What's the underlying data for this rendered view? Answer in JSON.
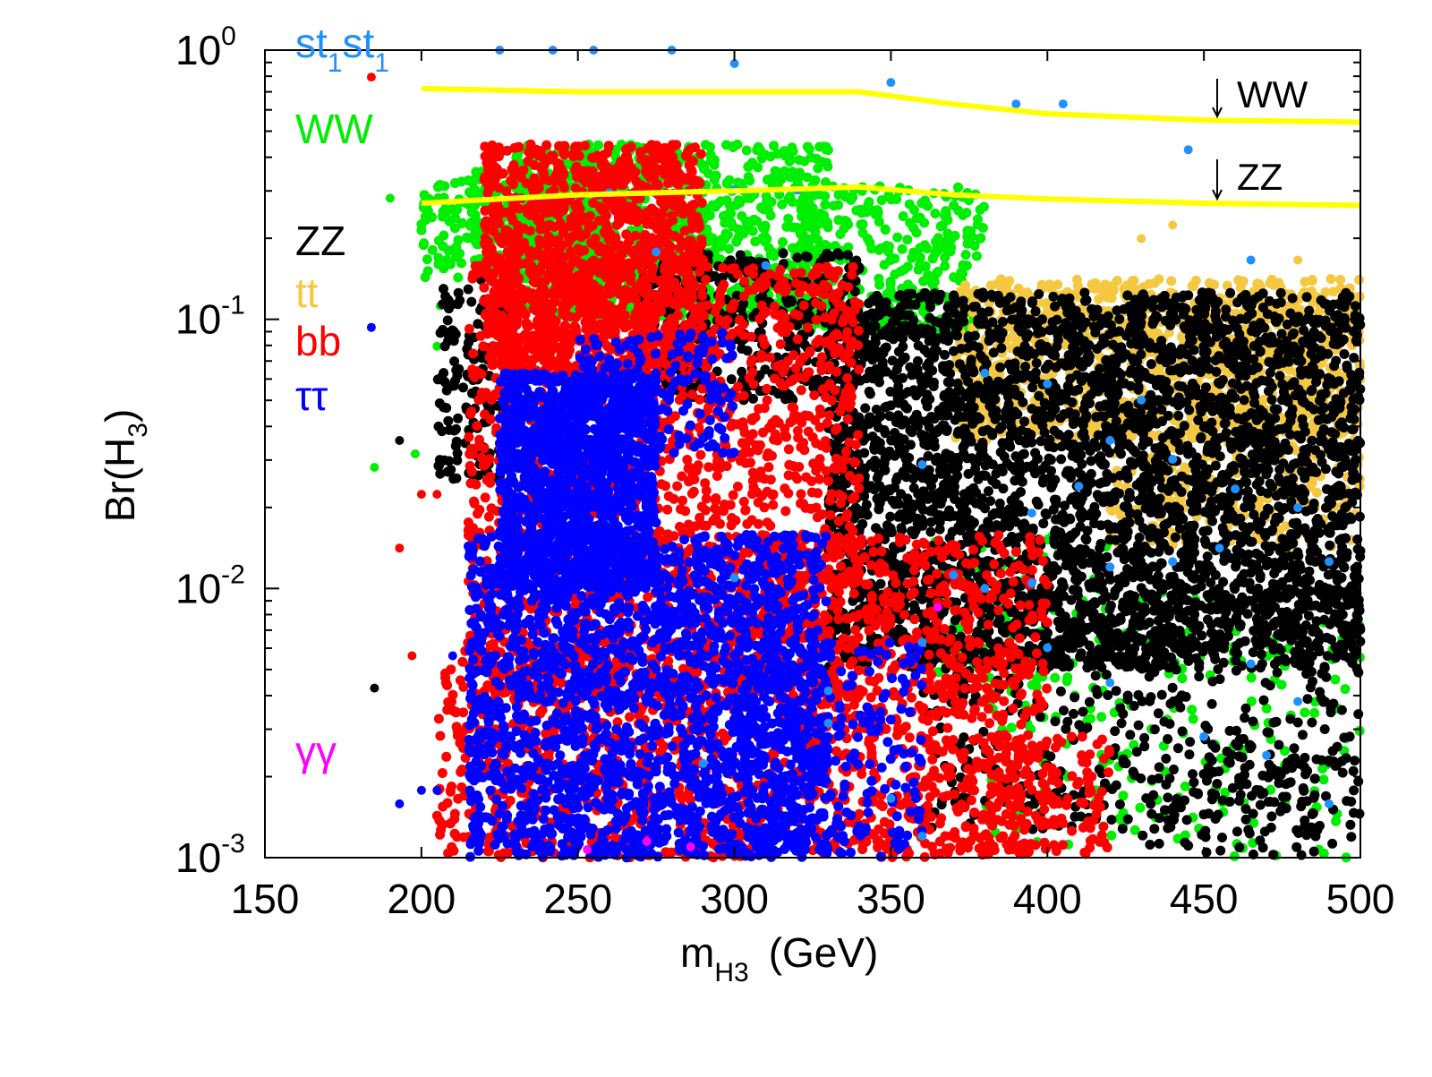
{
  "chart_data": {
    "type": "scatter",
    "title": "",
    "xlabel": {
      "main": "m",
      "sub": "H3",
      "unit": "(GeV)"
    },
    "ylabel": {
      "main": "Br(H",
      "sub": "3",
      "close": ")"
    },
    "xlim": [
      150,
      500
    ],
    "ylim": [
      0.001,
      1
    ],
    "yscale": "log",
    "x_ticks": [
      "150",
      "200",
      "250",
      "300",
      "350",
      "400",
      "450",
      "500"
    ],
    "x_tick_values": [
      150,
      200,
      250,
      300,
      350,
      400,
      450,
      500
    ],
    "y_ticks": [
      {
        "value": 1,
        "base": "10",
        "exp": "0"
      },
      {
        "value": 0.1,
        "base": "10",
        "exp": "-1"
      },
      {
        "value": 0.01,
        "base": "10",
        "exp": "-2"
      },
      {
        "value": 0.001,
        "base": "10",
        "exp": "-3"
      }
    ],
    "legend": [
      {
        "name": "st1st1",
        "parts": [
          "st",
          "1",
          "st",
          "1"
        ],
        "color": "#1e90ff"
      },
      {
        "name": "WW",
        "label": "WW",
        "color": "#00ee00"
      },
      {
        "name": "ZZ",
        "label": "ZZ",
        "color": "#000000"
      },
      {
        "name": "tt",
        "label": "tt",
        "color": "#f5c842"
      },
      {
        "name": "bb",
        "label": "bb",
        "color": "#ff0000"
      },
      {
        "name": "tautau",
        "label": "ττ",
        "color": "#0000ff"
      },
      {
        "name": "gammagamma",
        "label": "γγ",
        "color": "#ff00ff"
      }
    ],
    "limit_lines": [
      {
        "label": "WW",
        "color": "#ffff00",
        "points": [
          [
            200,
            0.72
          ],
          [
            250,
            0.7
          ],
          [
            300,
            0.7
          ],
          [
            340,
            0.7
          ],
          [
            370,
            0.63
          ],
          [
            400,
            0.58
          ],
          [
            450,
            0.55
          ],
          [
            500,
            0.54
          ]
        ]
      },
      {
        "label": "ZZ",
        "color": "#ffff00",
        "points": [
          [
            200,
            0.27
          ],
          [
            250,
            0.29
          ],
          [
            300,
            0.3
          ],
          [
            340,
            0.31
          ],
          [
            370,
            0.29
          ],
          [
            400,
            0.28
          ],
          [
            450,
            0.27
          ],
          [
            500,
            0.265
          ]
        ]
      }
    ],
    "series": [
      {
        "name": "WW",
        "color": "#00ee00",
        "regions": [
          {
            "x": [
              200,
              260
            ],
            "logy": [
              -0.85,
              -0.45
            ],
            "n": 380
          },
          {
            "x": [
              230,
              330
            ],
            "logy": [
              -1.0,
              -0.35
            ],
            "n": 900
          },
          {
            "x": [
              320,
              380
            ],
            "logy": [
              -1.05,
              -0.5
            ],
            "n": 350
          },
          {
            "x": [
              380,
              500
            ],
            "logy": [
              -3.0,
              -2.0
            ],
            "n": 220
          },
          {
            "x": [
              360,
              420
            ],
            "logy": [
              -2.4,
              -1.8
            ],
            "n": 80
          }
        ],
        "points": [
          [
            205,
            -1.1
          ],
          [
            198,
            -1.5
          ],
          [
            185,
            -1.55
          ],
          [
            208,
            -0.8
          ],
          [
            206,
            -0.95
          ],
          [
            190,
            -0.55
          ]
        ]
      },
      {
        "name": "tt",
        "color": "#f5c842",
        "regions": [
          {
            "x": [
              370,
              500
            ],
            "logy": [
              -1.45,
              -0.85
            ],
            "n": 1100
          },
          {
            "x": [
              420,
              500
            ],
            "logy": [
              -1.85,
              -1.3
            ],
            "n": 300
          }
        ],
        "points": [
          [
            430,
            -0.7
          ],
          [
            440,
            -0.65
          ],
          [
            480,
            -0.78
          ]
        ]
      },
      {
        "name": "ZZ",
        "color": "#000000",
        "regions": [
          {
            "x": [
              205,
              230
            ],
            "logy": [
              -1.6,
              -0.85
            ],
            "n": 180
          },
          {
            "x": [
              270,
              340
            ],
            "logy": [
              -1.3,
              -0.75
            ],
            "n": 400
          },
          {
            "x": [
              330,
              500
            ],
            "logy": [
              -2.3,
              -0.9
            ],
            "n": 3800
          },
          {
            "x": [
              360,
              500
            ],
            "logy": [
              -2.9,
              -2.0
            ],
            "n": 500
          },
          {
            "x": [
              430,
              500
            ],
            "logy": [
              -3.0,
              -2.6
            ],
            "n": 100
          }
        ],
        "points": [
          [
            193,
            -1.45
          ],
          [
            185,
            -2.37
          ]
        ]
      },
      {
        "name": "bb",
        "color": "#ff0000",
        "regions": [
          {
            "x": [
              220,
              290
            ],
            "logy": [
              -1.2,
              -0.35
            ],
            "n": 1300
          },
          {
            "x": [
              215,
              340
            ],
            "logy": [
              -2.4,
              -0.8
            ],
            "n": 1800
          },
          {
            "x": [
              205,
              300
            ],
            "logy": [
              -3.0,
              -2.2
            ],
            "n": 700
          },
          {
            "x": [
              300,
              400
            ],
            "logy": [
              -3.0,
              -1.8
            ],
            "n": 1100
          },
          {
            "x": [
              380,
              420
            ],
            "logy": [
              -3.0,
              -2.55
            ],
            "n": 150
          }
        ],
        "points": [
          [
            193,
            -1.85
          ],
          [
            200,
            -1.65
          ],
          [
            205,
            -1.65
          ],
          [
            197,
            -2.25
          ],
          [
            184,
            -0.1
          ]
        ]
      },
      {
        "name": "tautau",
        "color": "#0000ff",
        "regions": [
          {
            "x": [
              225,
              275
            ],
            "logy": [
              -2.0,
              -1.2
            ],
            "n": 1400
          },
          {
            "x": [
              215,
              330
            ],
            "logy": [
              -3.0,
              -1.8
            ],
            "n": 2200
          },
          {
            "x": [
              250,
              300
            ],
            "logy": [
              -1.5,
              -1.05
            ],
            "n": 200
          },
          {
            "x": [
              300,
              360
            ],
            "logy": [
              -3.0,
              -2.2
            ],
            "n": 250
          }
        ],
        "points": [
          [
            184,
            -1.03
          ],
          [
            193,
            -2.8
          ],
          [
            200,
            -2.75
          ],
          [
            205,
            -2.75
          ],
          [
            210,
            -2.25
          ]
        ]
      },
      {
        "name": "st1st1",
        "color": "#1e90ff",
        "regions": [],
        "points": [
          [
            225,
            0.0
          ],
          [
            242,
            0.0
          ],
          [
            255,
            0.0
          ],
          [
            280,
            0.0
          ],
          [
            300,
            -0.05
          ],
          [
            350,
            -0.12
          ],
          [
            390,
            -0.2
          ],
          [
            405,
            -0.2
          ],
          [
            445,
            -0.37
          ],
          [
            465,
            -0.78
          ],
          [
            300,
            -0.52
          ],
          [
            320,
            -0.52
          ],
          [
            380,
            -1.2
          ],
          [
            400,
            -1.24
          ],
          [
            430,
            -1.3
          ],
          [
            420,
            -1.45
          ],
          [
            440,
            -1.52
          ],
          [
            460,
            -1.63
          ],
          [
            480,
            -1.7
          ],
          [
            360,
            -1.54
          ],
          [
            395,
            -1.72
          ],
          [
            410,
            -1.62
          ],
          [
            440,
            -1.9
          ],
          [
            455,
            -1.85
          ],
          [
            490,
            -1.9
          ],
          [
            370,
            -1.95
          ],
          [
            395,
            -1.98
          ],
          [
            420,
            -1.92
          ],
          [
            380,
            -2.0
          ],
          [
            360,
            -2.2
          ],
          [
            330,
            -2.38
          ],
          [
            400,
            -2.22
          ],
          [
            420,
            -2.35
          ],
          [
            465,
            -2.28
          ],
          [
            480,
            -2.42
          ],
          [
            450,
            -2.55
          ],
          [
            470,
            -2.62
          ],
          [
            290,
            -2.65
          ],
          [
            300,
            -1.96
          ],
          [
            330,
            -2.5
          ],
          [
            350,
            -2.78
          ],
          [
            360,
            -2.92
          ],
          [
            275,
            -0.75
          ],
          [
            260,
            -0.53
          ],
          [
            310,
            -0.8
          ],
          [
            490,
            -2.8
          ]
        ]
      },
      {
        "name": "gammagamma",
        "color": "#ff00ff",
        "regions": [],
        "points": [
          [
            253,
            -2.97
          ],
          [
            272,
            -2.94
          ],
          [
            286,
            -2.96
          ],
          [
            365,
            -2.07
          ]
        ]
      }
    ]
  },
  "annotations": {
    "ww_limit": "WW",
    "zz_limit": "ZZ"
  }
}
